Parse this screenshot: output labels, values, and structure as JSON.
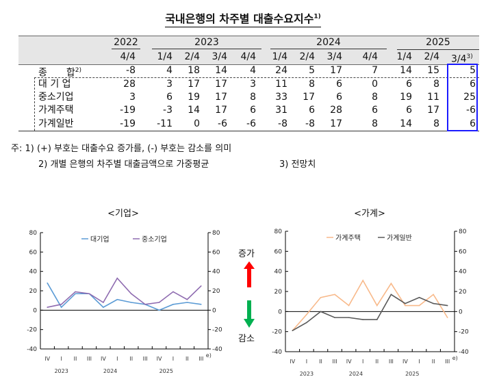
{
  "title": "국내은행의 차주별 대출수요지수",
  "title_note": "1)",
  "table": {
    "years": [
      "2022",
      "2023",
      "2024",
      "2025"
    ],
    "quarters": [
      "4/4",
      "1/4",
      "2/4",
      "3/4",
      "4/4",
      "1/4",
      "2/4",
      "3/4",
      "4/4",
      "1/4",
      "2/4",
      "3/4"
    ],
    "last_quarter_note": "3)",
    "highlight_color": "#1a1aff",
    "rows": [
      {
        "label": "종　　합",
        "note": "2)",
        "values": [
          "-8",
          "4",
          "18",
          "14",
          "4",
          "24",
          "5",
          "17",
          "7",
          "14",
          "15",
          "5"
        ]
      },
      {
        "label": "대 기 업",
        "values": [
          "28",
          "3",
          "17",
          "17",
          "3",
          "11",
          "8",
          "6",
          "0",
          "6",
          "8",
          "6"
        ]
      },
      {
        "label": "중소기업",
        "values": [
          "3",
          "6",
          "19",
          "17",
          "8",
          "33",
          "17",
          "6",
          "8",
          "19",
          "11",
          "25"
        ]
      },
      {
        "label": "가계주택",
        "values": [
          "-19",
          "-3",
          "14",
          "17",
          "6",
          "31",
          "6",
          "28",
          "6",
          "6",
          "17",
          "-6"
        ]
      },
      {
        "label": "가계일반",
        "values": [
          "-19",
          "-11",
          "0",
          "-6",
          "-6",
          "-8",
          "-8",
          "17",
          "8",
          "14",
          "8",
          "6"
        ]
      }
    ]
  },
  "notes": {
    "line1": "주: 1) (+) 부호는 대출수요 증가를, (-) 부호는 감소를 의미",
    "line2": "2) 개별 은행의 차주별 대출금액으로 가중평균",
    "line3": "3) 전망치"
  },
  "legend_center": {
    "up_label": "증가",
    "down_label": "감소",
    "up_color": "#ff0000",
    "down_color": "#00b050"
  },
  "chart_data": [
    {
      "type": "line",
      "title": "<기업>",
      "categories": [
        "IV",
        "I",
        "II",
        "III",
        "IV",
        "I",
        "II",
        "III",
        "IV",
        "I",
        "II",
        "III"
      ],
      "year_labels": [
        "2023",
        "2024",
        "2025"
      ],
      "last_category_note": "e)",
      "ylim": [
        -40,
        80
      ],
      "yticks": [
        "80",
        "60",
        "40",
        "20",
        "0",
        "-20",
        "-40"
      ],
      "legend": "top-center",
      "series": [
        {
          "name": "대기업",
          "color": "#5b9bd5",
          "values": [
            28,
            3,
            17,
            17,
            3,
            11,
            8,
            6,
            0,
            6,
            8,
            6
          ]
        },
        {
          "name": "중소기업",
          "color": "#8e6bb0",
          "values": [
            3,
            6,
            19,
            17,
            8,
            33,
            17,
            6,
            8,
            19,
            11,
            25
          ]
        }
      ]
    },
    {
      "type": "line",
      "title": "<가계>",
      "categories": [
        "IV",
        "I",
        "II",
        "III",
        "IV",
        "I",
        "II",
        "III",
        "IV",
        "I",
        "II",
        "III"
      ],
      "year_labels": [
        "2023",
        "2024",
        "2025"
      ],
      "last_category_note": "e)",
      "ylim": [
        -40,
        80
      ],
      "yticks": [
        "80",
        "60",
        "40",
        "20",
        "0",
        "-20",
        "-40"
      ],
      "legend": "top-center",
      "series": [
        {
          "name": "가계주택",
          "color": "#f8b98a",
          "values": [
            -19,
            -3,
            14,
            17,
            6,
            31,
            6,
            28,
            6,
            6,
            17,
            -6
          ]
        },
        {
          "name": "가계일반",
          "color": "#595959",
          "values": [
            -19,
            -11,
            0,
            -6,
            -6,
            -8,
            -8,
            17,
            8,
            14,
            8,
            6
          ]
        }
      ]
    }
  ]
}
